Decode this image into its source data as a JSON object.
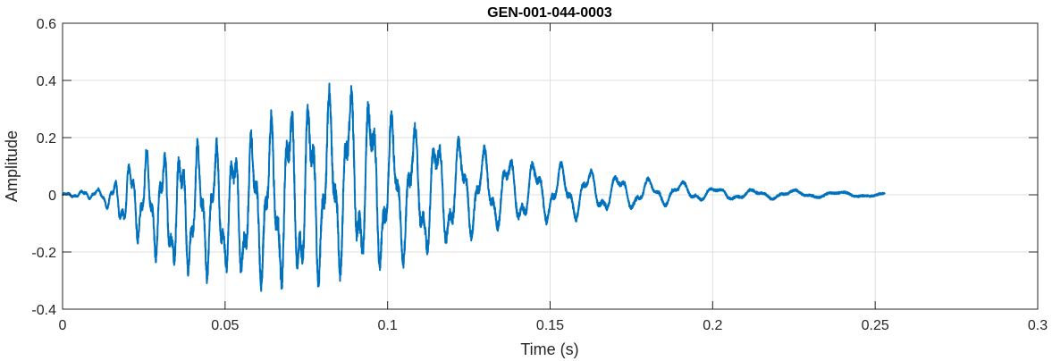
{
  "chart_data": {
    "type": "line",
    "title": "GEN-001-044-0003",
    "xlabel": "Time (s)",
    "ylabel": "Amplitude",
    "xlim": [
      0,
      0.3
    ],
    "ylim": [
      -0.4,
      0.6
    ],
    "x_ticks": [
      0,
      0.05,
      0.1,
      0.15,
      0.2,
      0.25,
      0.3
    ],
    "x_tick_labels": [
      "0",
      "0.05",
      "0.1",
      "0.15",
      "0.2",
      "0.25",
      "0.3"
    ],
    "y_ticks": [
      -0.4,
      -0.2,
      0,
      0.2,
      0.4,
      0.6
    ],
    "y_tick_labels": [
      "-0.4",
      "-0.2",
      "0",
      "0.2",
      "0.4",
      "0.6"
    ],
    "grid": true,
    "line_color": "#0072BD",
    "series": [
      {
        "description_points": "signal envelope samples (time s, amplitude)",
        "x": [
          0,
          0.005,
          0.008,
          0.012,
          0.015,
          0.02,
          0.025,
          0.03,
          0.035,
          0.04,
          0.045,
          0.05,
          0.055,
          0.06,
          0.065,
          0.07,
          0.075,
          0.08,
          0.085,
          0.09,
          0.093,
          0.1,
          0.105,
          0.11,
          0.115,
          0.12,
          0.125,
          0.13,
          0.14,
          0.15,
          0.16,
          0.17,
          0.18,
          0.19,
          0.2,
          0.21,
          0.22,
          0.23,
          0.24,
          0.25,
          0.253
        ],
        "upper": [
          0.005,
          0.01,
          0.025,
          0.02,
          0.04,
          0.12,
          0.16,
          0.17,
          0.18,
          0.2,
          0.2,
          0.2,
          0.21,
          0.25,
          0.3,
          0.36,
          0.36,
          0.38,
          0.38,
          0.42,
          0.41,
          0.3,
          0.28,
          0.25,
          0.24,
          0.22,
          0.2,
          0.17,
          0.14,
          0.12,
          0.1,
          0.08,
          0.06,
          0.05,
          0.03,
          0.02,
          0.02,
          0.015,
          0.012,
          0.01,
          0.005
        ],
        "lower": [
          -0.005,
          -0.01,
          -0.015,
          -0.02,
          -0.08,
          -0.14,
          -0.19,
          -0.25,
          -0.3,
          -0.3,
          -0.3,
          -0.3,
          -0.32,
          -0.32,
          -0.35,
          -0.36,
          -0.36,
          -0.33,
          -0.3,
          -0.3,
          -0.3,
          -0.28,
          -0.25,
          -0.25,
          -0.22,
          -0.2,
          -0.16,
          -0.14,
          -0.12,
          -0.1,
          -0.09,
          -0.06,
          -0.05,
          -0.03,
          -0.02,
          -0.02,
          -0.015,
          -0.012,
          -0.01,
          -0.008,
          -0.005
        ]
      }
    ]
  }
}
